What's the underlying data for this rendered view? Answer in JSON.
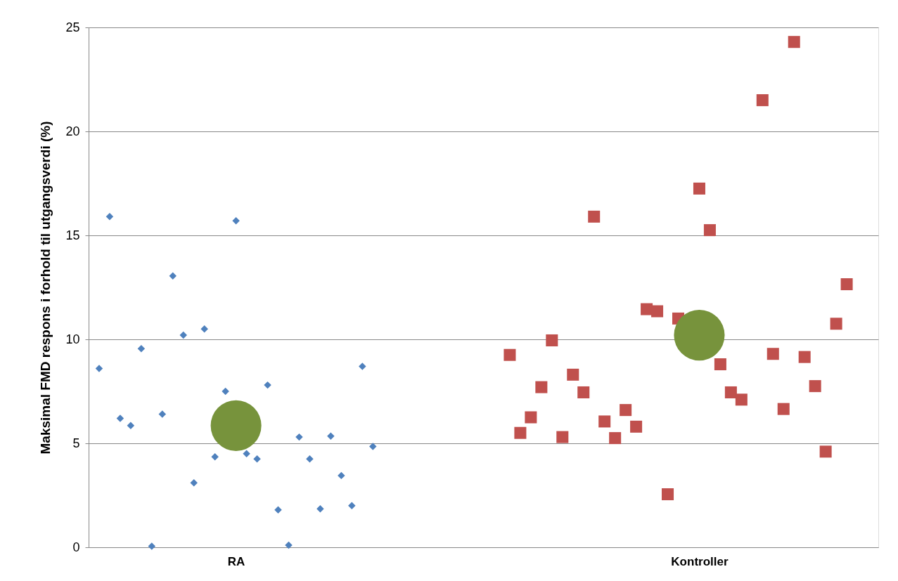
{
  "chart_data": {
    "type": "scatter",
    "ylabel": "Maksimal FMD respons i forhold til utgangsverdi (%)",
    "categories": [
      null,
      null,
      null,
      null,
      null,
      null,
      null,
      null,
      null,
      null,
      null,
      null,
      null,
      "RA",
      null,
      null,
      null,
      null,
      null,
      null,
      null,
      null,
      null,
      null,
      null,
      null,
      null,
      null,
      null,
      null,
      null,
      null,
      null,
      null,
      null,
      null,
      null,
      null,
      null,
      null,
      null,
      null,
      null,
      null,
      null,
      null,
      null,
      null,
      null,
      null,
      null,
      null,
      null,
      null,
      null,
      null,
      null,
      "Kontroller",
      null,
      null,
      null,
      null,
      null,
      null,
      null,
      null,
      null,
      null,
      null,
      null,
      null,
      null,
      null,
      null
    ],
    "ylim": [
      0,
      25
    ],
    "yticks": [
      0,
      5,
      10,
      15,
      20,
      25
    ],
    "grid": "y",
    "series": [
      {
        "color": "#4f81bd",
        "marker": "diamond",
        "values": [
          8.6,
          15.9,
          6.2,
          5.85,
          9.55,
          0.05,
          6.4,
          13.05,
          10.2,
          3.1,
          10.5,
          4.35,
          7.5,
          15.7,
          4.5,
          4.25,
          7.8,
          1.8,
          0.1,
          5.3,
          4.25,
          1.85,
          5.35,
          3.45,
          2.0,
          8.7,
          4.85,
          null,
          null,
          null,
          null,
          null,
          null,
          null,
          null,
          null,
          null,
          null,
          null,
          null,
          null,
          null,
          null,
          null,
          null,
          null,
          null,
          null,
          null,
          null,
          null,
          null,
          null,
          null,
          null,
          null,
          null,
          null,
          null,
          null,
          null,
          null,
          null,
          null,
          null,
          null,
          null,
          null,
          null,
          null,
          null,
          null,
          null,
          null
        ]
      },
      {
        "color": "#c0504d",
        "marker": "square",
        "values": [
          null,
          null,
          null,
          null,
          null,
          null,
          null,
          null,
          null,
          null,
          null,
          null,
          null,
          null,
          null,
          null,
          null,
          null,
          null,
          null,
          null,
          null,
          null,
          null,
          null,
          null,
          null,
          null,
          null,
          null,
          null,
          null,
          null,
          null,
          null,
          null,
          null,
          null,
          null,
          9.25,
          5.5,
          6.25,
          7.7,
          9.95,
          5.3,
          8.3,
          7.45,
          15.9,
          6.05,
          5.25,
          6.6,
          5.8,
          11.45,
          11.35,
          2.55,
          11.0,
          null,
          17.25,
          15.25,
          8.8,
          7.45,
          7.1,
          null,
          21.5,
          9.3,
          6.65,
          24.3,
          9.15,
          7.75,
          4.6,
          10.75,
          12.65,
          null,
          null
        ]
      },
      {
        "color": "#77933c",
        "marker": "circle",
        "values": [
          null,
          null,
          null,
          null,
          null,
          null,
          null,
          null,
          null,
          null,
          null,
          null,
          null,
          5.85,
          null,
          null,
          null,
          null,
          null,
          null,
          null,
          null,
          null,
          null,
          null,
          null,
          null,
          null,
          null,
          null,
          null,
          null,
          null,
          null,
          null,
          null,
          null,
          null,
          null,
          null,
          null,
          null,
          null,
          null,
          null,
          null,
          null,
          null,
          null,
          null,
          null,
          null,
          null,
          null,
          null,
          null,
          null,
          10.2,
          null,
          null,
          null,
          null,
          null,
          null,
          null,
          null,
          null,
          null,
          null,
          null,
          null,
          null,
          null,
          null
        ]
      }
    ]
  }
}
